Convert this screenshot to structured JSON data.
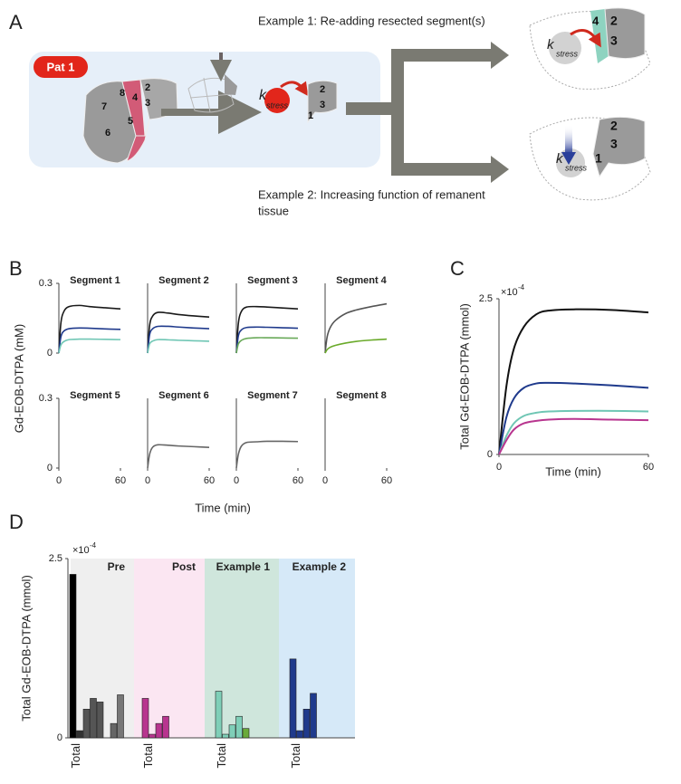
{
  "panels": [
    "A",
    "B",
    "C",
    "D"
  ],
  "panel_a": {
    "patient": "Pat 1",
    "example1": "Example 1: Re-adding resected segment(s)",
    "example2": [
      "Example 2: Increasing function of remanent",
      "tissue"
    ],
    "k": "k",
    "stress": "stress",
    "pre_segments": [
      "7",
      "8",
      "4",
      "2",
      "3",
      "5",
      "6"
    ],
    "post_segments": [
      "2",
      "3",
      "1"
    ],
    "ex1_segments": [
      "4",
      "2",
      "3"
    ],
    "ex2_segments": [
      "2",
      "3",
      "1"
    ]
  },
  "panel_b": {
    "ylabel": "Gd-EOB-DTPA (mM)",
    "xlabel": "Time (min)"
  },
  "chart_data": [
    {
      "type": "line",
      "title": "Segment 1",
      "x": [
        0,
        2,
        5,
        10,
        20,
        30,
        45,
        60
      ],
      "xlim": [
        0,
        60
      ],
      "ylim": [
        0,
        0.3
      ],
      "yticks": [
        0,
        0.3
      ],
      "series": [
        {
          "color": "#1a1a1a",
          "values": [
            0,
            0.13,
            0.18,
            0.2,
            0.205,
            0.2,
            0.195,
            0.19
          ]
        },
        {
          "color": "#1f3a8c",
          "values": [
            0,
            0.07,
            0.095,
            0.105,
            0.108,
            0.107,
            0.104,
            0.102
          ]
        },
        {
          "color": "#6fc6b4",
          "values": [
            0,
            0.035,
            0.05,
            0.058,
            0.06,
            0.06,
            0.059,
            0.058
          ]
        }
      ]
    },
    {
      "type": "line",
      "title": "Segment 2",
      "x": [
        0,
        2,
        5,
        10,
        20,
        30,
        45,
        60
      ],
      "xlim": [
        0,
        60
      ],
      "ylim": [
        0,
        0.3
      ],
      "series": [
        {
          "color": "#1a1a1a",
          "values": [
            0,
            0.12,
            0.16,
            0.175,
            0.172,
            0.166,
            0.16,
            0.155
          ]
        },
        {
          "color": "#1f3a8c",
          "values": [
            0,
            0.08,
            0.105,
            0.115,
            0.115,
            0.112,
            0.108,
            0.105
          ]
        },
        {
          "color": "#6fc6b4",
          "values": [
            0,
            0.04,
            0.052,
            0.058,
            0.057,
            0.055,
            0.053,
            0.051
          ]
        }
      ]
    },
    {
      "type": "line",
      "title": "Segment 3",
      "x": [
        0,
        2,
        5,
        10,
        20,
        30,
        45,
        60
      ],
      "xlim": [
        0,
        60
      ],
      "ylim": [
        0,
        0.3
      ],
      "series": [
        {
          "color": "#1a1a1a",
          "values": [
            0,
            0.13,
            0.18,
            0.198,
            0.2,
            0.198,
            0.194,
            0.19
          ]
        },
        {
          "color": "#1f3a8c",
          "values": [
            0,
            0.075,
            0.1,
            0.11,
            0.112,
            0.111,
            0.109,
            0.107
          ]
        },
        {
          "color": "#6aaa5a",
          "values": [
            0,
            0.04,
            0.055,
            0.063,
            0.066,
            0.066,
            0.065,
            0.064
          ]
        }
      ]
    },
    {
      "type": "line",
      "title": "Segment 4",
      "x": [
        0,
        2,
        5,
        10,
        20,
        30,
        45,
        60
      ],
      "xlim": [
        0,
        60
      ],
      "ylim": [
        0,
        0.3
      ],
      "series": [
        {
          "color": "#555555",
          "values": [
            0,
            0.07,
            0.11,
            0.14,
            0.17,
            0.185,
            0.2,
            0.212
          ]
        },
        {
          "color": "#6aaa2a",
          "values": [
            0,
            0.015,
            0.025,
            0.033,
            0.043,
            0.05,
            0.056,
            0.06
          ]
        }
      ]
    },
    {
      "type": "line",
      "title": "Segment 5",
      "x": [
        0,
        2,
        5,
        10,
        20,
        30,
        45,
        60
      ],
      "xlim": [
        0,
        60
      ],
      "ylim": [
        0,
        0.3
      ],
      "yticks": [
        0,
        0.3
      ],
      "xticks": [
        0,
        60
      ],
      "series": []
    },
    {
      "type": "line",
      "title": "Segment 6",
      "x": [
        0,
        2,
        5,
        10,
        20,
        30,
        45,
        60
      ],
      "xlim": [
        0,
        60
      ],
      "ylim": [
        0,
        0.3
      ],
      "xticks": [
        0,
        60
      ],
      "series": [
        {
          "color": "#666666",
          "values": [
            0,
            0.06,
            0.09,
            0.1,
            0.098,
            0.095,
            0.092,
            0.089
          ]
        }
      ]
    },
    {
      "type": "line",
      "title": "Segment 7",
      "x": [
        0,
        2,
        5,
        10,
        20,
        30,
        45,
        60
      ],
      "xlim": [
        0,
        60
      ],
      "ylim": [
        0,
        0.3
      ],
      "xticks": [
        0,
        60
      ],
      "series": [
        {
          "color": "#666666",
          "values": [
            0,
            0.06,
            0.095,
            0.11,
            0.113,
            0.115,
            0.115,
            0.114
          ]
        }
      ]
    },
    {
      "type": "line",
      "title": "Segment 8",
      "x": [
        0,
        2,
        5,
        10,
        20,
        30,
        45,
        60
      ],
      "xlim": [
        0,
        60
      ],
      "ylim": [
        0,
        0.3
      ],
      "xticks": [
        0,
        60
      ],
      "series": []
    },
    {
      "type": "line",
      "ylabel": "Total Gd-EOB-DTPA (mmol)",
      "xlabel": "Time (min)",
      "y_multiplier": "×10",
      "y_exponent": "-4",
      "x": [
        0,
        3,
        6,
        10,
        15,
        20,
        30,
        45,
        60
      ],
      "xlim": [
        0,
        60
      ],
      "xticks": [
        0,
        60
      ],
      "ylim": [
        0,
        0.00025
      ],
      "yticks": [
        0,
        {
          "value": 0.00025,
          "label": "2.5"
        }
      ],
      "series": [
        {
          "color": "#111111",
          "values": [
            0,
            0.00011,
            0.00017,
            0.000205,
            0.000225,
            0.000231,
            0.000233,
            0.000232,
            0.000228
          ]
        },
        {
          "color": "#1f3a8c",
          "values": [
            0,
            6e-05,
            9e-05,
            0.000107,
            0.000114,
            0.000115,
            0.000114,
            0.000111,
            0.000107
          ]
        },
        {
          "color": "#6fc6b4",
          "values": [
            0,
            3e-05,
            5e-05,
            6.2e-05,
            6.7e-05,
            6.9e-05,
            7e-05,
            7e-05,
            6.9e-05
          ]
        },
        {
          "color": "#b8358f",
          "values": [
            0,
            2.3e-05,
            4e-05,
            5e-05,
            5.4e-05,
            5.6e-05,
            5.7e-05,
            5.6e-05,
            5.5e-05
          ]
        }
      ]
    },
    {
      "type": "bar",
      "ylabel": "Total Gd-EOB-DTPA (mmol)",
      "y_multiplier": "×10",
      "y_exponent": "-4",
      "ylim": [
        0,
        0.00025
      ],
      "yticks": [
        0,
        {
          "value": 0.00025,
          "label": "2.5"
        }
      ],
      "groups": [
        {
          "name": "Pre",
          "background": "#efefef",
          "categories": [
            "Total",
            null,
            null,
            null,
            null,
            null,
            null,
            null,
            null
          ],
          "colors": [
            "#000000",
            "#333333",
            "#555555",
            "#555555",
            "#555555",
            "#555555",
            "#666666",
            "#777777",
            "#777777"
          ],
          "values": [
            0.000228,
            1e-05,
            4e-05,
            5.5e-05,
            5e-05,
            0,
            2e-05,
            6e-05,
            0
          ]
        },
        {
          "name": "Post",
          "background": "#fbe6f2",
          "categories": [
            "Total",
            null,
            null,
            null,
            null,
            null,
            null,
            null,
            null
          ],
          "colors": [
            "#b8358f",
            "#b8358f",
            "#b8358f",
            "#b8358f",
            "#b8358f",
            "#b8358f",
            "#b8358f",
            "#b8358f",
            "#b8358f"
          ],
          "values": [
            5.5e-05,
            5e-06,
            2e-05,
            3e-05,
            0,
            0,
            0,
            0,
            0
          ]
        },
        {
          "name": "Example 1",
          "background": "#cfe6dc",
          "categories": [
            "Total",
            null,
            null,
            null,
            null,
            null,
            null,
            null,
            null
          ],
          "colors": [
            "#7fcfb8",
            "#7fcfb8",
            "#7fcfb8",
            "#7fcfb8",
            "#6aaa3a",
            "#7fcfb8",
            "#7fcfb8",
            "#7fcfb8",
            "#7fcfb8"
          ],
          "values": [
            6.5e-05,
            5e-06,
            1.8e-05,
            3e-05,
            1.3e-05,
            0,
            0,
            0,
            0
          ]
        },
        {
          "name": "Example 2",
          "background": "#d6e9f8",
          "categories": [
            "Total",
            null,
            null,
            null,
            null,
            null,
            null,
            null,
            null
          ],
          "colors": [
            "#1f3a8c",
            "#1f3a8c",
            "#1f3a8c",
            "#1f3a8c",
            "#1f3a8c",
            "#1f3a8c",
            "#1f3a8c",
            "#1f3a8c",
            "#1f3a8c"
          ],
          "values": [
            0.00011,
            1e-05,
            4e-05,
            6.2e-05,
            0,
            0,
            0,
            0,
            0
          ]
        }
      ]
    }
  ]
}
